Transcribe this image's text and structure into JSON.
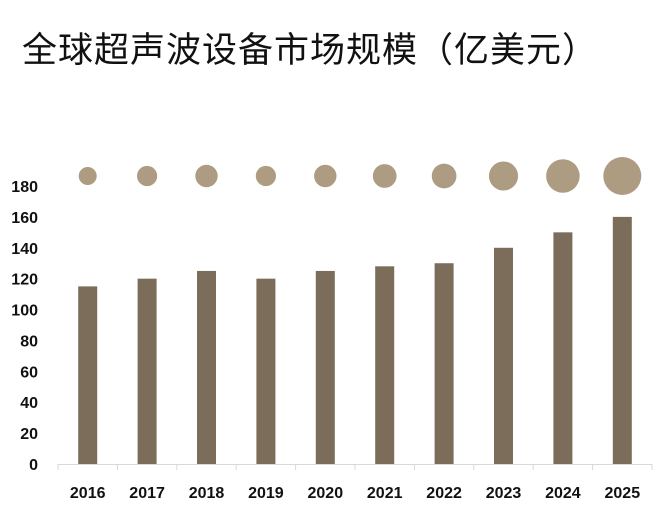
{
  "chart_data": {
    "type": "bar",
    "title": "全球超声波设备市场规模（亿美元）",
    "categories": [
      "2016",
      "2017",
      "2018",
      "2019",
      "2020",
      "2021",
      "2022",
      "2023",
      "2024",
      "2025"
    ],
    "values": [
      115,
      120,
      125,
      120,
      125,
      128,
      130,
      140,
      150,
      160
    ],
    "ylim": [
      0,
      180
    ],
    "yticks": [
      0,
      20,
      40,
      60,
      80,
      100,
      120,
      140,
      160,
      180
    ],
    "xlabel": "",
    "ylabel": "",
    "grid": false,
    "colors": {
      "bar": "#7b6d5a",
      "bubble": "#ad9c82",
      "axis": "#d9d9d9"
    }
  }
}
